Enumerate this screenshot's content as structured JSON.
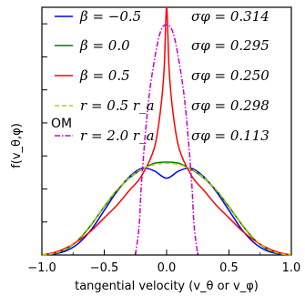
{
  "chart_data": {
    "type": "line",
    "xlabel": "tangential velocity (v_θ or v_φ)",
    "ylabel": "f(v_θ,φ)",
    "xlim": [
      -1.0,
      1.0
    ],
    "ylim": [
      0,
      1.0
    ],
    "x_ticks": [
      "−1.0",
      "−0.5",
      "0.0",
      "0.5",
      "1.0"
    ],
    "x_tick_values": [
      -1.0,
      -0.5,
      0.0,
      0.5,
      1.0
    ],
    "legend_group_label": "OM",
    "series": [
      {
        "name": "β = −0.5",
        "sigma_label": "σφ = 0.314",
        "color": "#0000ff",
        "dash": "solid",
        "x": [
          -1.0,
          -0.9,
          -0.8,
          -0.7,
          -0.6,
          -0.5,
          -0.4,
          -0.3,
          -0.2,
          -0.1,
          0.0,
          0.1,
          0.2,
          0.3,
          0.4,
          0.5,
          0.6,
          0.7,
          0.8,
          0.9,
          1.0
        ],
        "y": [
          0.0,
          0.004,
          0.018,
          0.05,
          0.105,
          0.18,
          0.255,
          0.315,
          0.35,
          0.34,
          0.31,
          0.34,
          0.35,
          0.315,
          0.255,
          0.18,
          0.105,
          0.05,
          0.018,
          0.004,
          0.0
        ]
      },
      {
        "name": "β = 0.0",
        "sigma_label": "σφ = 0.295",
        "color": "#008000",
        "dash": "solid",
        "x": [
          -1.0,
          -0.9,
          -0.8,
          -0.7,
          -0.6,
          -0.5,
          -0.4,
          -0.3,
          -0.2,
          -0.1,
          0.0,
          0.1,
          0.2,
          0.3,
          0.4,
          0.5,
          0.6,
          0.7,
          0.8,
          0.9,
          1.0
        ],
        "y": [
          0.0,
          0.006,
          0.025,
          0.065,
          0.125,
          0.195,
          0.26,
          0.31,
          0.345,
          0.37,
          0.375,
          0.37,
          0.345,
          0.31,
          0.26,
          0.195,
          0.125,
          0.065,
          0.025,
          0.006,
          0.0
        ]
      },
      {
        "name": "β = 0.5",
        "sigma_label": "σφ = 0.250",
        "color": "#ff0000",
        "dash": "solid",
        "x": [
          -1.0,
          -0.9,
          -0.8,
          -0.7,
          -0.6,
          -0.5,
          -0.4,
          -0.3,
          -0.2,
          -0.1,
          -0.05,
          -0.02,
          0.0,
          0.02,
          0.05,
          0.1,
          0.2,
          0.3,
          0.4,
          0.5,
          0.6,
          0.7,
          0.8,
          0.9,
          1.0
        ],
        "y": [
          0.0,
          0.01,
          0.03,
          0.06,
          0.1,
          0.15,
          0.2,
          0.26,
          0.32,
          0.43,
          0.58,
          0.75,
          1.0,
          0.75,
          0.58,
          0.43,
          0.32,
          0.26,
          0.2,
          0.15,
          0.1,
          0.06,
          0.03,
          0.01,
          0.0
        ]
      },
      {
        "name": "r = 0.5 r_a",
        "sigma_label": "σφ = 0.298",
        "color": "#c8c800",
        "dash": "dashed",
        "x": [
          -1.0,
          -0.9,
          -0.8,
          -0.7,
          -0.6,
          -0.5,
          -0.4,
          -0.3,
          -0.2,
          -0.1,
          0.0,
          0.1,
          0.2,
          0.3,
          0.4,
          0.5,
          0.6,
          0.7,
          0.8,
          0.9,
          1.0
        ],
        "y": [
          0.0,
          0.007,
          0.027,
          0.068,
          0.128,
          0.198,
          0.262,
          0.312,
          0.347,
          0.365,
          0.37,
          0.365,
          0.347,
          0.312,
          0.262,
          0.198,
          0.128,
          0.068,
          0.027,
          0.007,
          0.0
        ]
      },
      {
        "name": "r = 2.0 r_a",
        "sigma_label": "σφ = 0.113",
        "color": "#cc00cc",
        "dash": "dashdot",
        "x": [
          -0.25,
          -0.22,
          -0.2,
          -0.15,
          -0.1,
          -0.05,
          0.0,
          0.05,
          0.1,
          0.15,
          0.2,
          0.22,
          0.25
        ],
        "y": [
          0.0,
          0.12,
          0.3,
          0.6,
          0.78,
          0.9,
          0.93,
          0.9,
          0.78,
          0.6,
          0.3,
          0.12,
          0.0
        ]
      }
    ]
  }
}
